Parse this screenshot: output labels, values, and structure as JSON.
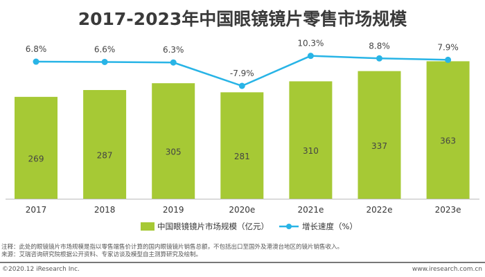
{
  "chart_data": {
    "type": "bar+line",
    "title": "2017-2023年中国眼镜镜片零售市场规模",
    "categories": [
      "2017",
      "2018",
      "2019",
      "2020e",
      "2021e",
      "2022e",
      "2023e"
    ],
    "series": [
      {
        "name": "中国眼镜镜片市场规模（亿元）",
        "type": "bar",
        "values": [
          269,
          287,
          305,
          281,
          310,
          337,
          363
        ],
        "color": "#a6c935"
      },
      {
        "name": "增长速度（%）",
        "type": "line",
        "values": [
          6.8,
          6.6,
          6.3,
          -7.9,
          10.3,
          8.8,
          7.9
        ],
        "labels": [
          "6.8%",
          "6.6%",
          "6.3%",
          "-7.9%",
          "10.3%",
          "8.8%",
          "7.9%"
        ],
        "color": "#28b4e6"
      }
    ],
    "legend_position": "bottom",
    "grid": false
  },
  "notes": {
    "note": "注释：此处的眼镜镜片市场规模是指以零售端售价计算的国内眼镜镜片销售总额，不包括出口至国外及港澳台地区的镜片销售收入。",
    "source": "来源：艾瑞咨询研究院根据公开资料、专家访谈及模型自主测算研究及绘制。"
  },
  "footer": {
    "copyright": "©2020.12 iResearch Inc.",
    "website": "www.iresearch.com.cn"
  }
}
